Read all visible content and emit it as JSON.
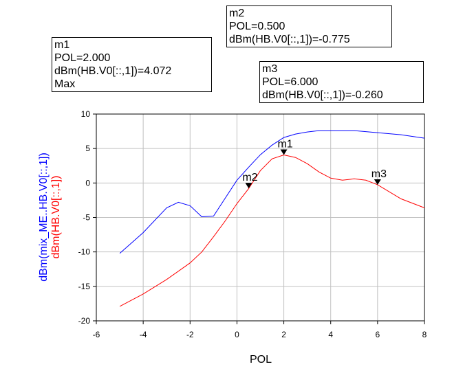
{
  "chart_data": {
    "type": "line",
    "xlabel": "POL",
    "xlim": [
      -6,
      8
    ],
    "ylim": [
      -20,
      10
    ],
    "xticks": [
      -6,
      -4,
      -2,
      0,
      2,
      4,
      6,
      8
    ],
    "yticks": [
      -20,
      -15,
      -10,
      -5,
      0,
      5,
      10
    ],
    "grid": true,
    "ylabels": [
      {
        "text": "dBm(mix_ME..HB.V0[::,1])",
        "color": "#0000ff"
      },
      {
        "text": "dBm(HB.V0[::,1])",
        "color": "#ff0000"
      }
    ],
    "series": [
      {
        "color": "#0000ff",
        "x": [
          -5,
          -4,
          -3,
          -2.5,
          -2,
          -1.5,
          -1,
          -0.5,
          0,
          0.5,
          1,
          1.5,
          2,
          2.5,
          3,
          3.5,
          4,
          5,
          6,
          7,
          8
        ],
        "y": [
          -10.2,
          -7.2,
          -3.6,
          -2.8,
          -3.3,
          -4.9,
          -4.8,
          -2.2,
          0.4,
          2.3,
          4.1,
          5.5,
          6.6,
          7.1,
          7.4,
          7.6,
          7.6,
          7.6,
          7.3,
          7.0,
          6.5
        ]
      },
      {
        "color": "#ff0000",
        "x": [
          -5,
          -4,
          -3,
          -2,
          -1.5,
          -1,
          -0.5,
          0,
          0.5,
          1,
          1.5,
          2,
          2.5,
          3,
          3.5,
          4,
          4.5,
          5,
          5.5,
          6,
          7,
          8
        ],
        "y": [
          -17.9,
          -16.1,
          -14.0,
          -11.6,
          -10.0,
          -7.8,
          -5.5,
          -3.0,
          -0.8,
          1.8,
          3.5,
          4.07,
          3.7,
          2.8,
          1.6,
          0.7,
          0.4,
          0.6,
          0.4,
          -0.26,
          -2.3,
          -3.6
        ]
      }
    ],
    "markers": [
      {
        "name": "m1",
        "x": 2.0,
        "y": 4.072,
        "lines": [
          "m1",
          "POL=2.000",
          "dBm(HB.V0[::,1])=4.072",
          "Max"
        ]
      },
      {
        "name": "m2",
        "x": 0.5,
        "y": -0.775,
        "lines": [
          "m2",
          "POL=0.500",
          "dBm(HB.V0[::,1])=-0.775"
        ]
      },
      {
        "name": "m3",
        "x": 6.0,
        "y": -0.26,
        "lines": [
          "m3",
          "POL=6.000",
          "dBm(HB.V0[::,1])=-0.260"
        ]
      }
    ]
  }
}
